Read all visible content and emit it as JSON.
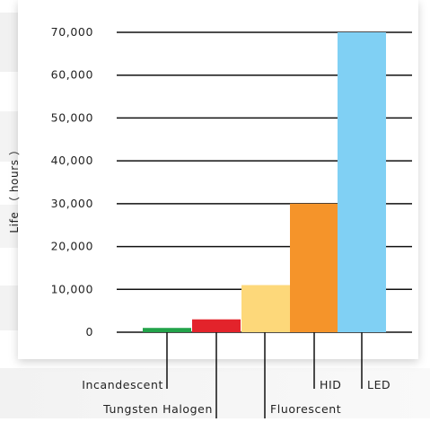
{
  "chart_data": {
    "type": "bar",
    "title": "",
    "xlabel": "",
    "ylabel": "Life （ hours ）",
    "ylim": [
      0,
      70000
    ],
    "yticks": [
      0,
      10000,
      20000,
      30000,
      40000,
      50000,
      60000,
      70000
    ],
    "ytick_labels": [
      "0",
      "10,000",
      "20,000",
      "30,000",
      "40,000",
      "50,000",
      "60,000",
      "70,000"
    ],
    "grid": true,
    "categories": [
      "Incandescent",
      "Tungsten Halogen",
      "Fluorescent",
      "HID",
      "LED"
    ],
    "values": [
      1000,
      3000,
      11000,
      30000,
      70000
    ],
    "colors": [
      "#22a34a",
      "#e3232b",
      "#fdd87a",
      "#f5942a",
      "#80d0f4"
    ]
  }
}
